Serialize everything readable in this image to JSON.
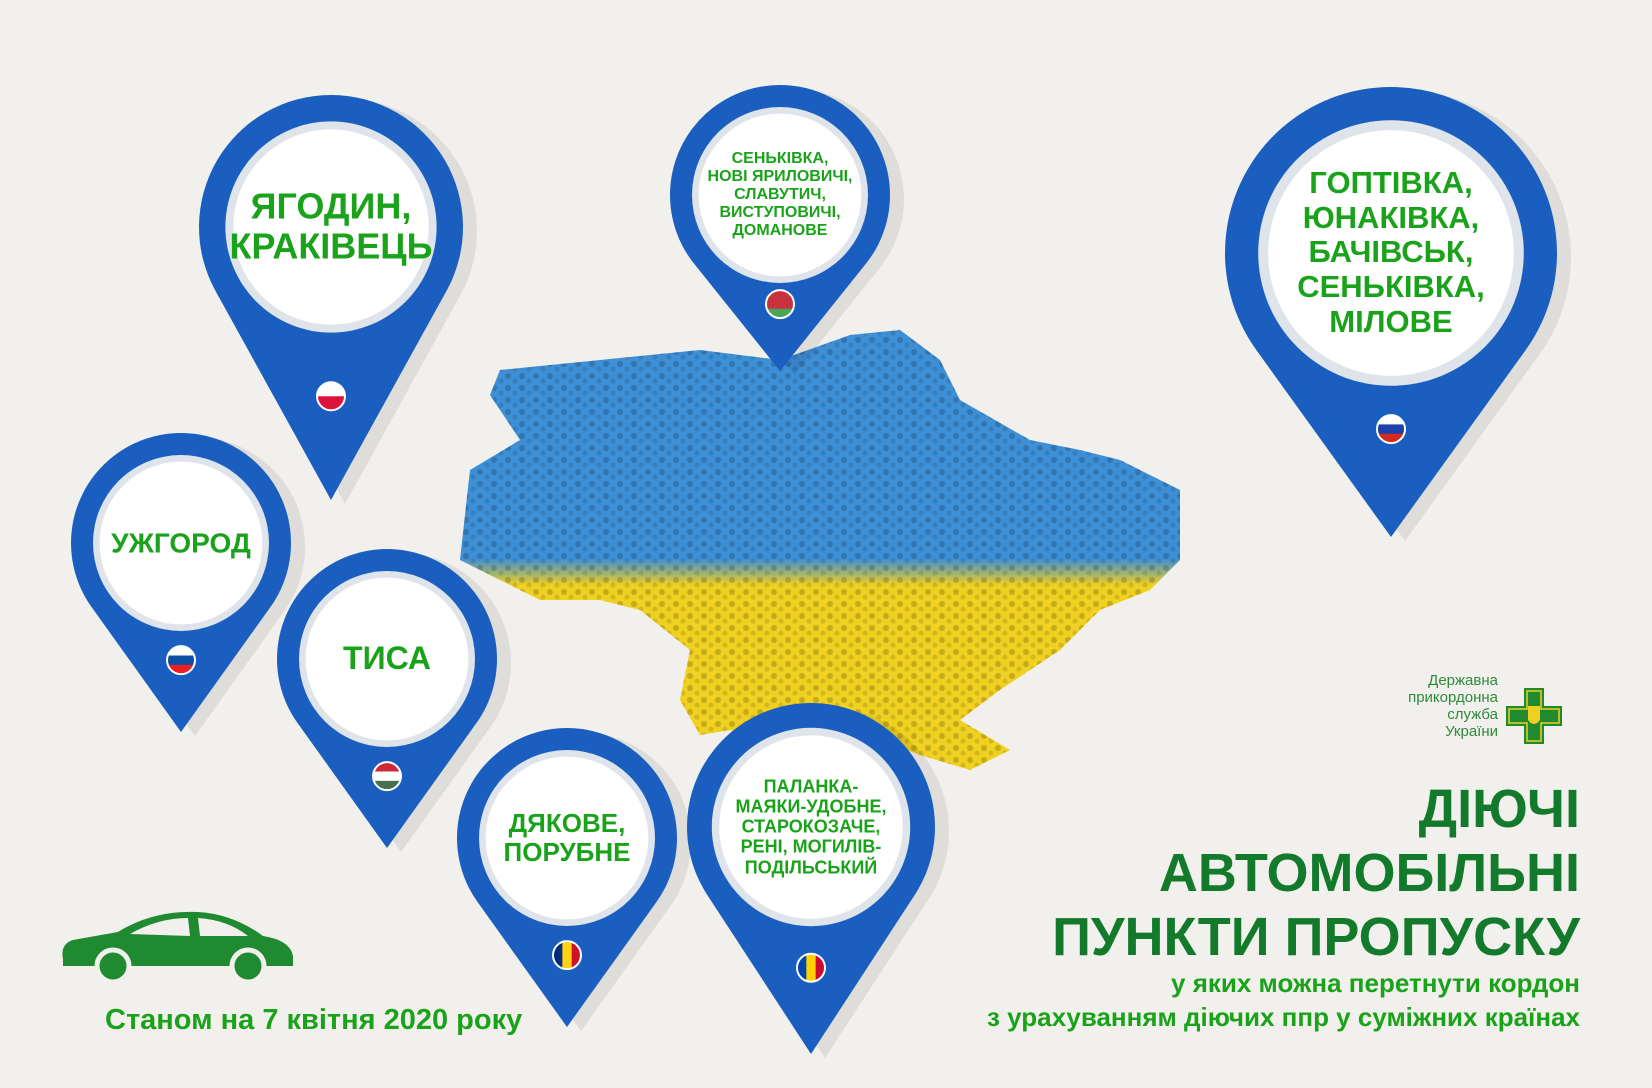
{
  "title": {
    "line1": "ДІЮЧІ",
    "line2": "АВТОМОБІЛЬНІ",
    "line3": "ПУНКТИ ПРОПУСКУ",
    "sub1": "у яких можна перетнути кордон",
    "sub2": "з урахуванням діючих ппр у суміжних країнах"
  },
  "date_note": "Станом на 7 квітня 2020 року",
  "logo": {
    "text": "Державна\nприкордонна\nслужба\nУкраїни",
    "icon": "border-guard-cross-emblem"
  },
  "colors": {
    "pin_blue": "#1a5fc0",
    "text_green": "#1aa31a",
    "title_green": "#127a2a",
    "map_blue": "#3d8fd6",
    "map_yellow": "#f0d020"
  },
  "pins": [
    {
      "country": "Poland",
      "flag": "poland-flag-icon",
      "text": "ЯГОДИН,\nКРАКІВЕЦЬ"
    },
    {
      "country": "Belarus",
      "flag": "belarus-flag-icon",
      "text": "СЕНЬКІВКА,\nНОВІ ЯРИЛОВИЧІ,\nСЛАВУТИЧ,\nВИСТУПОВИЧІ,\nДОМАНОВЕ"
    },
    {
      "country": "Russia",
      "flag": "russia-flag-icon",
      "text": "ГОПТІВКА,\nЮНАКІВКА,\nБАЧІВСЬК,\nСЕНЬКІВКА,\nМІЛОВЕ"
    },
    {
      "country": "Slovakia",
      "flag": "slovakia-flag-icon",
      "text": "УЖГОРОД"
    },
    {
      "country": "Hungary",
      "flag": "hungary-flag-icon",
      "text": "ТИСА"
    },
    {
      "country": "Romania",
      "flag": "romania-flag-icon",
      "text": "ДЯКОВЕ,\nПОРУБНЕ"
    },
    {
      "country": "Moldova",
      "flag": "moldova-flag-icon",
      "text": "ПАЛАНКА-\nМАЯКИ-УДОБНЕ,\nСТАРОКОЗАЧЕ,\nРЕНІ, МОГИЛІВ-\nПОДІЛЬСЬКИЙ"
    }
  ]
}
